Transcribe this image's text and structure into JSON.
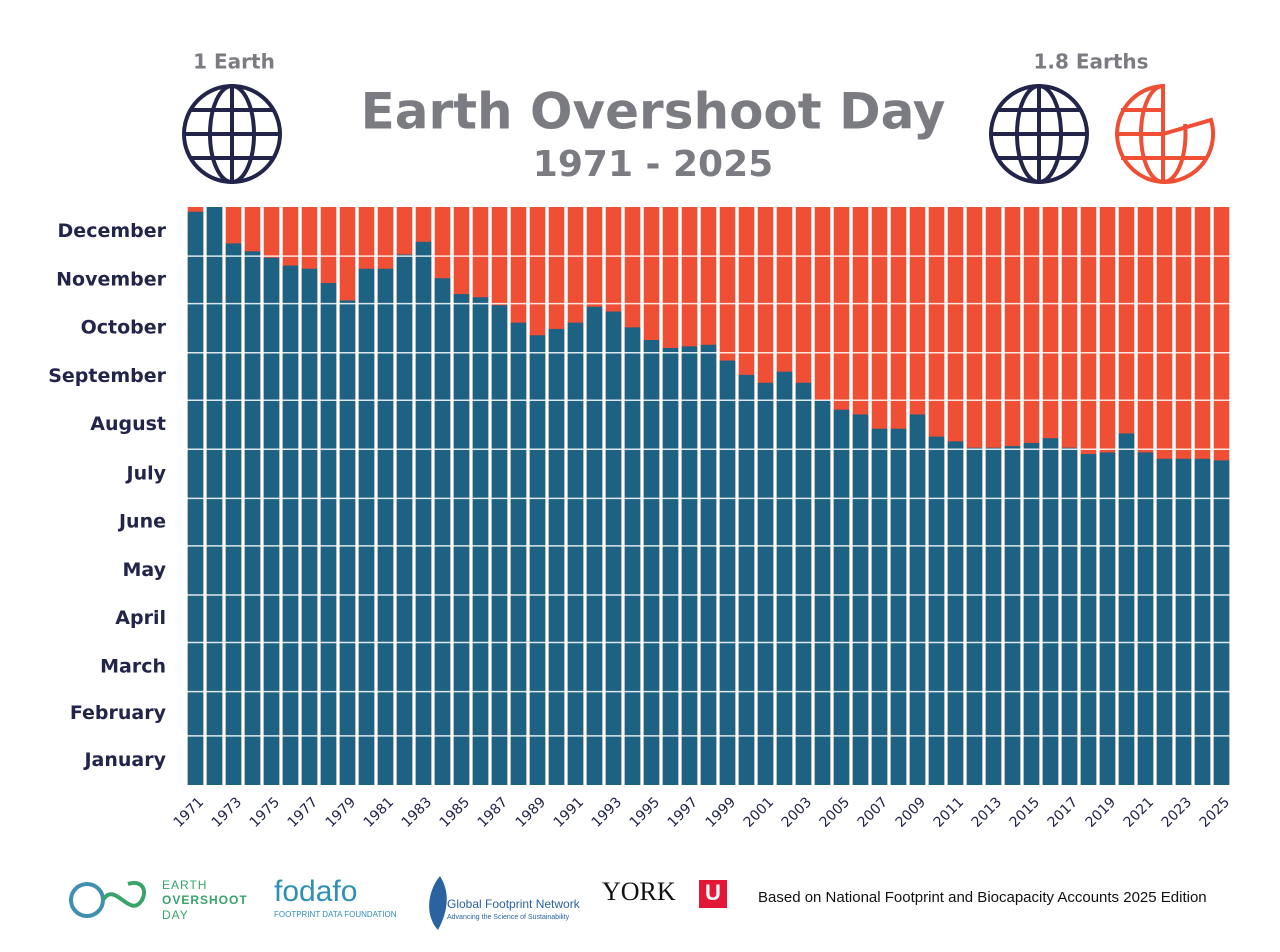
{
  "chart_data": {
    "type": "bar",
    "title": "Earth Overshoot Day",
    "subtitle": "1971 - 2025",
    "left_label": "1 Earth",
    "right_label": "1.8 Earths",
    "categories": [
      "1971",
      null,
      "1973",
      null,
      "1975",
      null,
      "1977",
      null,
      "1979",
      null,
      "1981",
      null,
      "1983",
      null,
      "1985",
      null,
      "1987",
      null,
      "1989",
      null,
      "1991",
      null,
      "1993",
      null,
      "1995",
      null,
      "1997",
      null,
      "1999",
      null,
      "2001",
      null,
      "2003",
      null,
      "2005",
      null,
      "2007",
      null,
      "2009",
      null,
      "2011",
      null,
      "2013",
      null,
      "2015",
      null,
      "2017",
      null,
      "2019",
      null,
      "2021",
      null,
      "2023",
      null,
      "2025"
    ],
    "values": [
      362,
      365,
      342,
      337,
      333,
      328,
      326,
      317,
      306,
      326,
      326,
      335,
      343,
      320,
      310,
      308,
      303,
      292,
      284,
      288,
      292,
      302,
      299,
      289,
      281,
      276,
      277,
      278,
      268,
      259,
      254,
      261,
      254,
      243,
      237,
      234,
      225,
      225,
      234,
      220,
      217,
      213,
      213,
      214,
      216,
      219,
      213,
      209,
      210,
      222,
      210,
      206,
      206,
      206,
      205
    ],
    "color": "#1d6283",
    "overshoot_color": "#ef4f35",
    "ylim": [
      0,
      365
    ],
    "yticks": [
      {
        "value": 15.5,
        "label": "January"
      },
      {
        "value": 45,
        "label": "February"
      },
      {
        "value": 74.5,
        "label": "March"
      },
      {
        "value": 105,
        "label": "April"
      },
      {
        "value": 135.5,
        "label": "May"
      },
      {
        "value": 166,
        "label": "June"
      },
      {
        "value": 196.5,
        "label": "July"
      },
      {
        "value": 227.5,
        "label": "August"
      },
      {
        "value": 258,
        "label": "September"
      },
      {
        "value": 288.5,
        "label": "October"
      },
      {
        "value": 319,
        "label": "November"
      },
      {
        "value": 349.5,
        "label": "December"
      }
    ],
    "ygrid": [
      31,
      59,
      90,
      120,
      151,
      181,
      212,
      243,
      273,
      304,
      334
    ],
    "grid": true
  },
  "footer": {
    "logo1": [
      "EARTH",
      "OVERSHOOT",
      "DAY"
    ],
    "logo2": "fodafo",
    "logo2_sub": "FOOTPRINT DATA FOUNDATION",
    "logo3": "Global Footprint Network",
    "logo3_sub": "Advancing the Science of Sustainability",
    "logo4": "YORK",
    "logo4_mark": "U",
    "source": "Based on National Footprint and Biocapacity Accounts 2025 Edition"
  }
}
